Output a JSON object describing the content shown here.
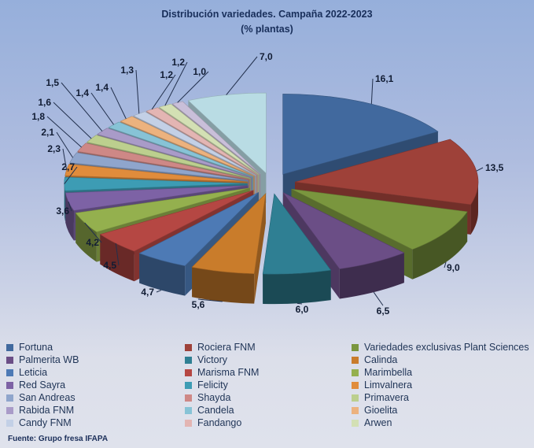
{
  "title": {
    "line1": "Distribución variedades. Campaña 2022-2023",
    "line2": "(% plantas)"
  },
  "source": "Fuente: Grupo fresa IFAPA",
  "colors": {
    "background_top": "#96AFDB",
    "background_bottom": "#DFE2EC",
    "title_text": "#182E5A",
    "value_label_text": "#111C33",
    "legend_text": "#1F3456"
  },
  "chart_data": {
    "type": "pie",
    "style": "3d-exploded",
    "title": "Distribución variedades. Campaña 2022-2023",
    "subtitle": "(% plantas)",
    "unit": "% plantas",
    "direction": "clockwise",
    "start_angle_deg": 0,
    "decimal_separator": ",",
    "legend": {
      "position": "bottom",
      "columns": 3,
      "order": "row-major"
    },
    "slices": [
      {
        "name": "Fortuna",
        "value": 16.1,
        "label": "16,1",
        "color": "#41699E",
        "in_legend": true
      },
      {
        "name": "Rociera FNM",
        "value": 13.5,
        "label": "13,5",
        "color": "#9E4139",
        "in_legend": true
      },
      {
        "name": "Variedades exclusivas Plant Sciences",
        "value": 9.0,
        "label": "9,0",
        "color": "#7A963E",
        "in_legend": true
      },
      {
        "name": "Palmerita WB",
        "value": 6.5,
        "label": "6,5",
        "color": "#6B4E86",
        "in_legend": true
      },
      {
        "name": "Victory",
        "value": 6.0,
        "label": "6,0",
        "color": "#2F7F93",
        "in_legend": true
      },
      {
        "name": "Calinda",
        "value": 5.6,
        "label": "5,6",
        "color": "#C97C2B",
        "in_legend": true
      },
      {
        "name": "Leticia",
        "value": 4.7,
        "label": "4,7",
        "color": "#4D7AB5",
        "in_legend": true
      },
      {
        "name": "Marisma FNM",
        "value": 4.5,
        "label": "4,5",
        "color": "#B54743",
        "in_legend": true
      },
      {
        "name": "Marimbella",
        "value": 4.2,
        "label": "4,2",
        "color": "#94B04E",
        "in_legend": true
      },
      {
        "name": "Red Sayra",
        "value": 3.6,
        "label": "3,6",
        "color": "#7D62A5",
        "in_legend": true
      },
      {
        "name": "Felicity",
        "value": 2.7,
        "label": "2,7",
        "color": "#3D9CB4",
        "in_legend": true
      },
      {
        "name": "Limvalnera",
        "value": 2.3,
        "label": "2,3",
        "color": "#E08C3C",
        "in_legend": true
      },
      {
        "name": "San Andreas",
        "value": 2.1,
        "label": "2,1",
        "color": "#8FA5CC",
        "in_legend": true
      },
      {
        "name": "Shayda",
        "value": 1.8,
        "label": "1,8",
        "color": "#CE8886",
        "in_legend": true
      },
      {
        "name": "Primavera",
        "value": 1.6,
        "label": "1,6",
        "color": "#BCCF8E",
        "in_legend": true
      },
      {
        "name": "Rabida FNM",
        "value": 1.5,
        "label": "1,5",
        "color": "#A99BC8",
        "in_legend": true
      },
      {
        "name": "Candela",
        "value": 1.4,
        "label": "1,4",
        "color": "#87C3D6",
        "in_legend": true
      },
      {
        "name": "Gioelita",
        "value": 1.4,
        "label": "1,4",
        "color": "#ECB27E",
        "in_legend": true
      },
      {
        "name": "Candy FNM",
        "value": 1.3,
        "label": "1,3",
        "color": "#C3D0E6",
        "in_legend": true
      },
      {
        "name": "Fandango",
        "value": 1.2,
        "label": "1,2",
        "color": "#E3B5B3",
        "in_legend": true
      },
      {
        "name": "Arwen",
        "value": 1.2,
        "label": "1,2",
        "color": "#D3E0B4",
        "in_legend": true
      },
      {
        "name": "",
        "value": 1.0,
        "label": "1,0",
        "color": "#C9BFD9",
        "in_legend": false
      },
      {
        "name": "",
        "value": 7.0,
        "label": "7,0",
        "color": "#B9DCE4",
        "in_legend": false
      }
    ]
  }
}
